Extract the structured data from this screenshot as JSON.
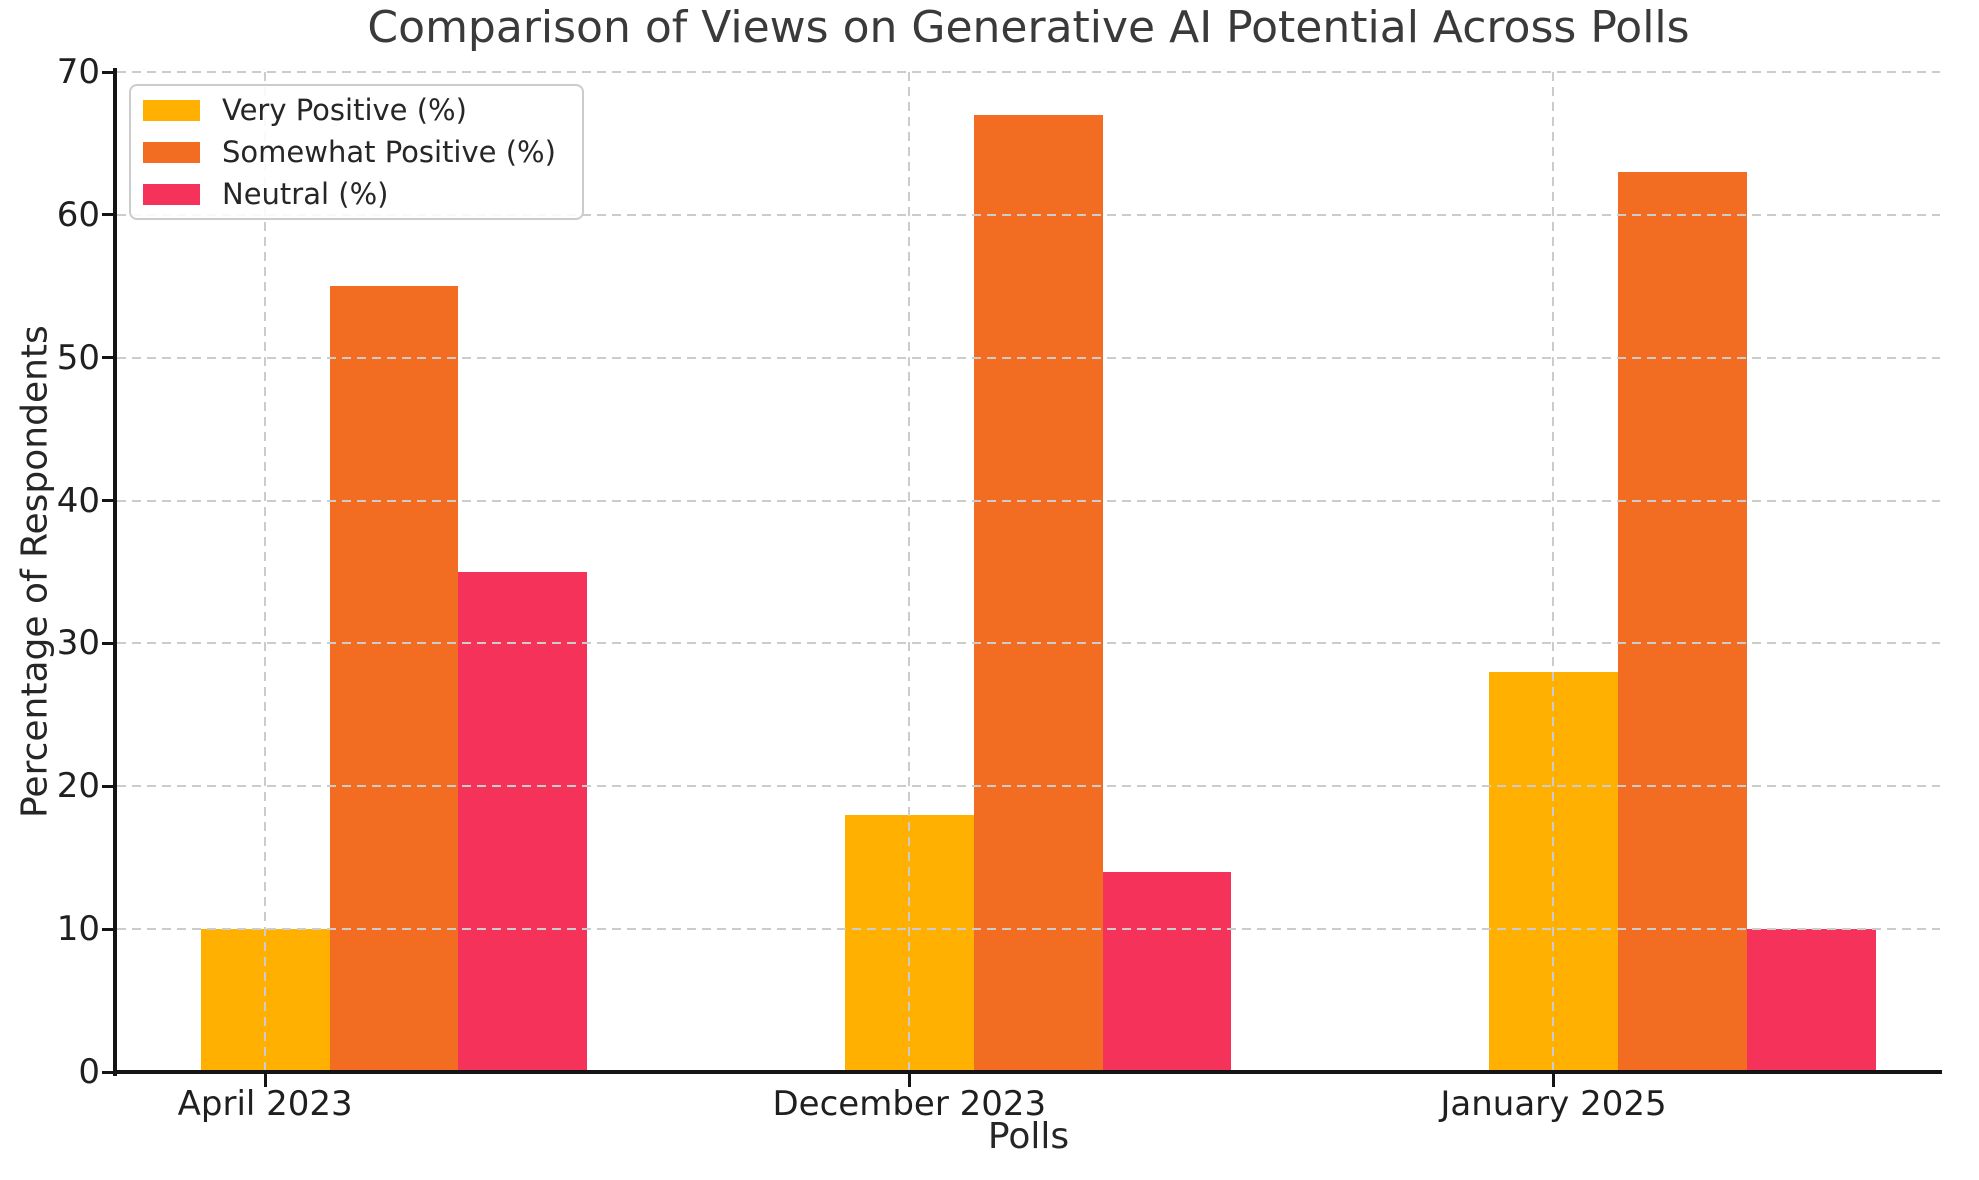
{
  "title": "Comparison of Views on Generative AI Potential Across Polls",
  "chart_data": {
    "type": "bar",
    "title": "Comparison of Views on Generative AI Potential Across Polls",
    "categories": [
      "April 2023",
      "December 2023",
      "January 2025"
    ],
    "series": [
      {
        "name": "Very Positive (%)",
        "color": "#FFB000",
        "values": [
          10,
          18,
          28
        ]
      },
      {
        "name": "Somewhat Positive (%)",
        "color": "#F26C21",
        "values": [
          55,
          67,
          63
        ]
      },
      {
        "name": "Neutral (%)",
        "color": "#F4325A",
        "values": [
          35,
          14,
          10
        ]
      }
    ],
    "xlabel": "Polls",
    "ylabel": "Percentage of Respondents",
    "ylim": [
      0,
      70
    ],
    "yticks": [
      0,
      10,
      20,
      30,
      40,
      50,
      60,
      70
    ],
    "grid": "dashed, both axes, drawn above bars",
    "legend_position": "upper-left"
  },
  "style_colors": {
    "background": "#FFFFFF",
    "title_text": "#3A3A3A",
    "axis_label_text": "#262626",
    "tick_label_text": "#1F1F1F",
    "grid_line": "#CCCCCC",
    "spine": "#141414",
    "legend_border": "#CCCCCC"
  }
}
